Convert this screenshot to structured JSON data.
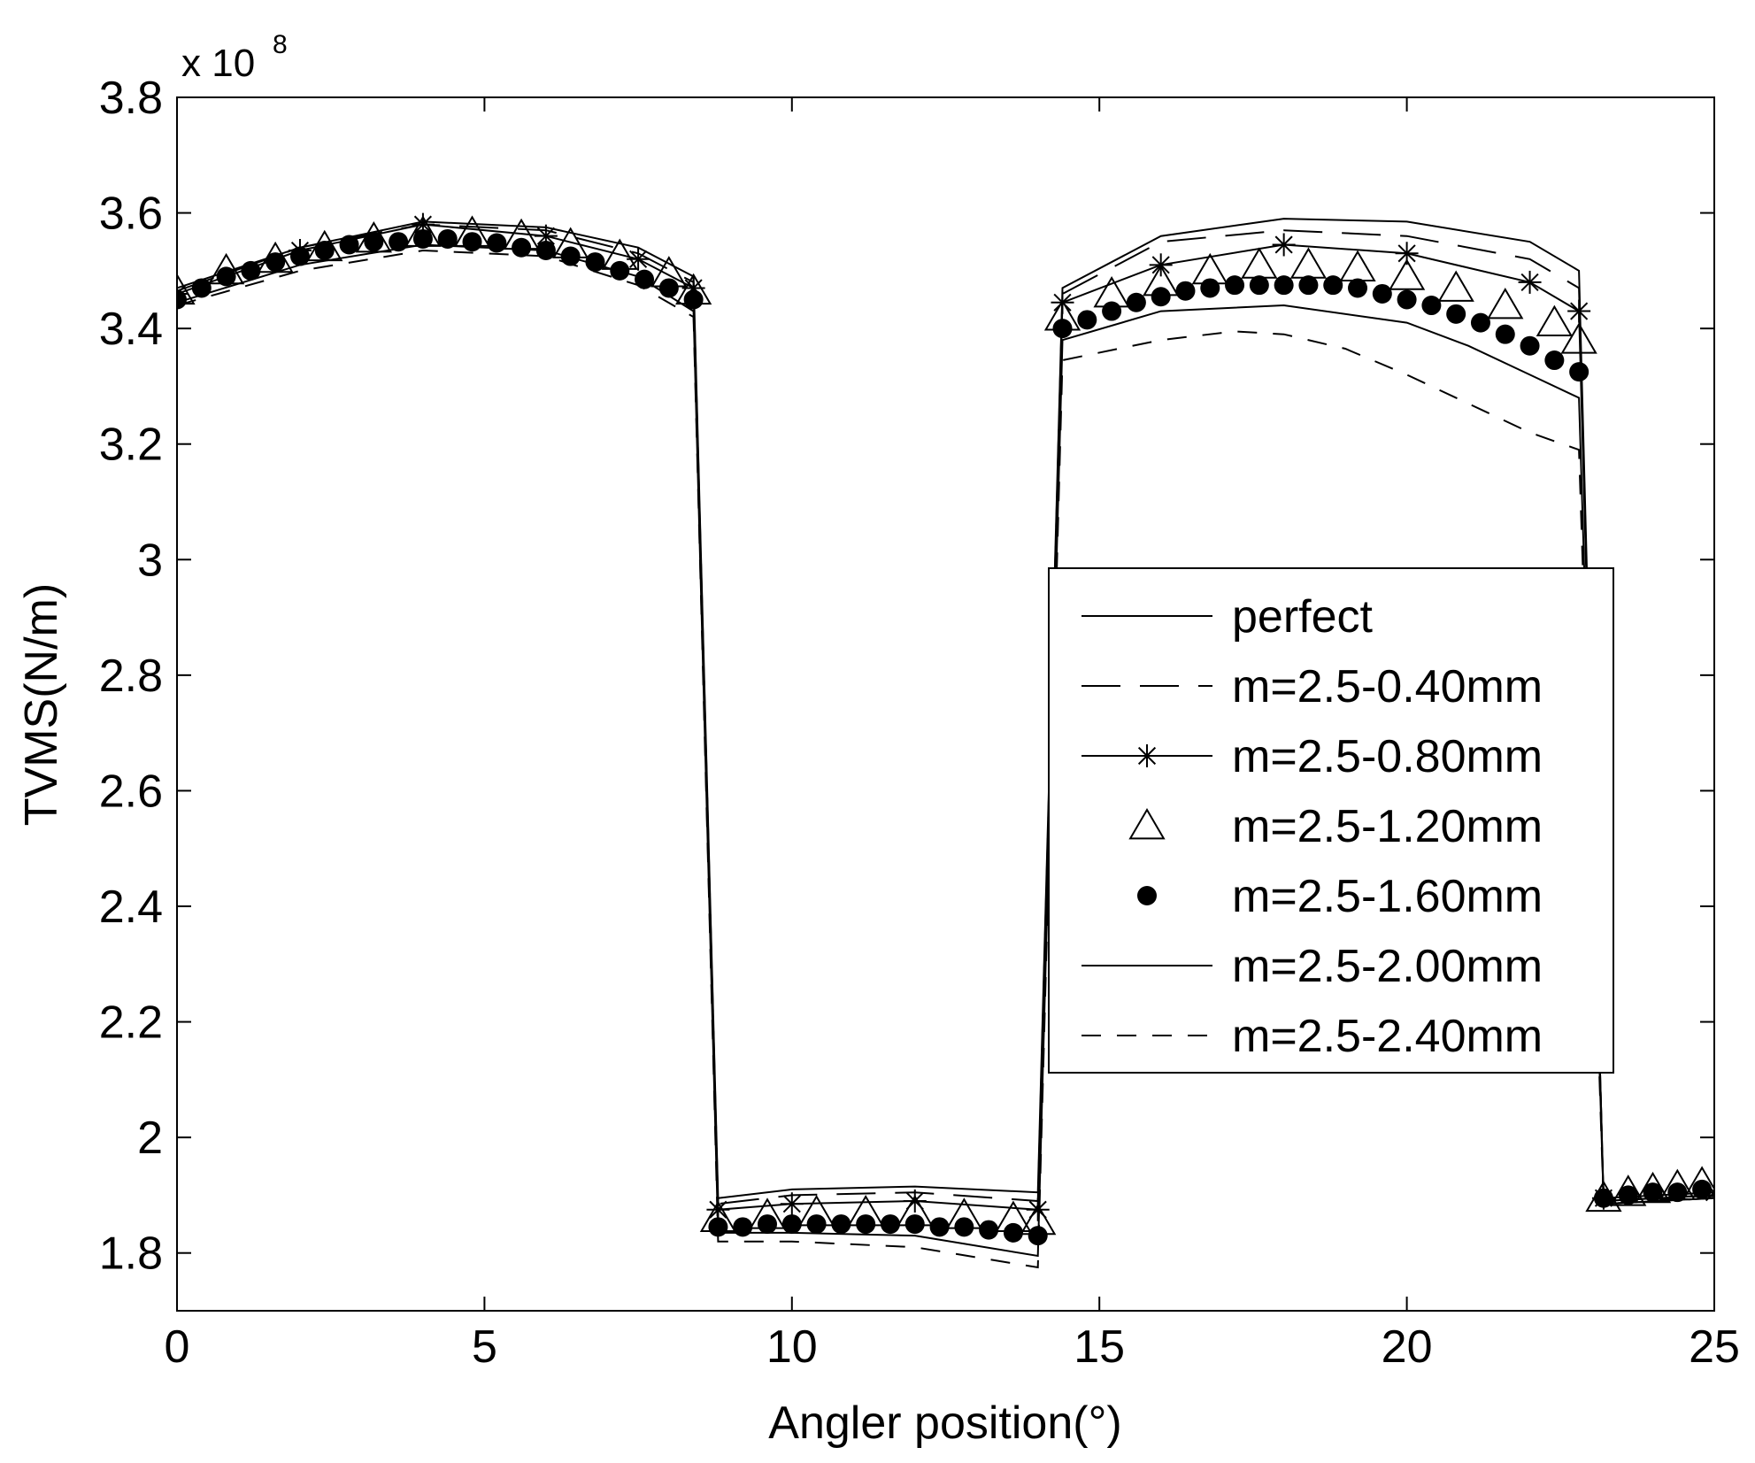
{
  "chart_data": {
    "type": "line",
    "xlabel": "Angler position(°)",
    "ylabel": "TVMS(N/m)",
    "y_multiplier": "x 10",
    "y_exponent": "8",
    "xlim": [
      0,
      25
    ],
    "ylim": [
      1.7,
      3.8
    ],
    "xticks": [
      0,
      5,
      10,
      15,
      20,
      25
    ],
    "xtick_labels": [
      "0",
      "5",
      "10",
      "15",
      "20",
      "25"
    ],
    "yticks": [
      1.8,
      2.0,
      2.2,
      2.4,
      2.6,
      2.8,
      3.0,
      3.2,
      3.4,
      3.6,
      3.8
    ],
    "ytick_labels": [
      "1.8",
      "2",
      "2.2",
      "2.4",
      "2.6",
      "2.8",
      "3",
      "3.2",
      "3.4",
      "3.6",
      "3.8"
    ],
    "grid": false,
    "legend_position": "center-right",
    "series": [
      {
        "name": "perfect",
        "style": "solid",
        "marker": "none",
        "points": [
          [
            0,
            3.47
          ],
          [
            2,
            3.54
          ],
          [
            4,
            3.585
          ],
          [
            6,
            3.575
          ],
          [
            7.5,
            3.54
          ],
          [
            8.4,
            3.49
          ],
          [
            8.8,
            1.895
          ],
          [
            10,
            1.91
          ],
          [
            12,
            1.915
          ],
          [
            14,
            1.905
          ],
          [
            14.4,
            3.47
          ],
          [
            16,
            3.56
          ],
          [
            18,
            3.59
          ],
          [
            20,
            3.585
          ],
          [
            22,
            3.55
          ],
          [
            22.8,
            3.5
          ],
          [
            23.2,
            1.885
          ],
          [
            25,
            1.895
          ]
        ]
      },
      {
        "name": "m=2.5-0.40mm",
        "style": "longdash",
        "marker": "none",
        "points": [
          [
            0,
            3.465
          ],
          [
            2,
            3.54
          ],
          [
            4,
            3.58
          ],
          [
            6,
            3.57
          ],
          [
            7.5,
            3.53
          ],
          [
            8.4,
            3.48
          ],
          [
            8.8,
            1.885
          ],
          [
            10,
            1.9
          ],
          [
            12,
            1.905
          ],
          [
            14,
            1.89
          ],
          [
            14.4,
            3.46
          ],
          [
            16,
            3.55
          ],
          [
            18,
            3.57
          ],
          [
            20,
            3.56
          ],
          [
            22,
            3.52
          ],
          [
            22.8,
            3.47
          ],
          [
            23.2,
            1.89
          ],
          [
            25,
            1.9
          ]
        ]
      },
      {
        "name": "m=2.5-0.80mm",
        "style": "solid",
        "marker": "star",
        "points": [
          [
            0,
            3.46
          ],
          [
            2,
            3.535
          ],
          [
            4,
            3.58
          ],
          [
            6,
            3.56
          ],
          [
            7.5,
            3.52
          ],
          [
            8.4,
            3.47
          ],
          [
            8.8,
            1.875
          ],
          [
            10,
            1.885
          ],
          [
            12,
            1.89
          ],
          [
            14,
            1.875
          ],
          [
            14.4,
            3.445
          ],
          [
            16,
            3.51
          ],
          [
            18,
            3.545
          ],
          [
            20,
            3.53
          ],
          [
            22,
            3.48
          ],
          [
            22.8,
            3.43
          ],
          [
            23.2,
            1.895
          ],
          [
            25,
            1.905
          ]
        ]
      },
      {
        "name": "m=2.5-1.20mm",
        "style": "none",
        "marker": "triangle",
        "points": [
          [
            0,
            3.465
          ],
          [
            0.8,
            3.5
          ],
          [
            1.6,
            3.52
          ],
          [
            2.4,
            3.54
          ],
          [
            3.2,
            3.555
          ],
          [
            4,
            3.565
          ],
          [
            4.8,
            3.565
          ],
          [
            5.6,
            3.56
          ],
          [
            6.4,
            3.545
          ],
          [
            7.2,
            3.525
          ],
          [
            8,
            3.495
          ],
          [
            8.4,
            3.465
          ],
          [
            8.8,
            1.86
          ],
          [
            9.6,
            1.865
          ],
          [
            10.4,
            1.87
          ],
          [
            11.2,
            1.87
          ],
          [
            12,
            1.87
          ],
          [
            12.8,
            1.865
          ],
          [
            13.6,
            1.86
          ],
          [
            14,
            1.855
          ],
          [
            14.4,
            3.42
          ],
          [
            15.2,
            3.46
          ],
          [
            16,
            3.48
          ],
          [
            16.8,
            3.5
          ],
          [
            17.6,
            3.51
          ],
          [
            18.4,
            3.51
          ],
          [
            19.2,
            3.505
          ],
          [
            20,
            3.49
          ],
          [
            20.8,
            3.47
          ],
          [
            21.6,
            3.44
          ],
          [
            22.4,
            3.41
          ],
          [
            22.8,
            3.38
          ],
          [
            23.2,
            1.895
          ],
          [
            23.6,
            1.905
          ],
          [
            24,
            1.91
          ],
          [
            24.4,
            1.915
          ],
          [
            24.8,
            1.92
          ]
        ]
      },
      {
        "name": "m=2.5-1.60mm",
        "style": "none",
        "marker": "dot",
        "points": [
          [
            0,
            3.45
          ],
          [
            0.4,
            3.47
          ],
          [
            0.8,
            3.49
          ],
          [
            1.2,
            3.5
          ],
          [
            1.6,
            3.515
          ],
          [
            2,
            3.525
          ],
          [
            2.4,
            3.535
          ],
          [
            2.8,
            3.545
          ],
          [
            3.2,
            3.55
          ],
          [
            3.6,
            3.55
          ],
          [
            4,
            3.555
          ],
          [
            4.4,
            3.555
          ],
          [
            4.8,
            3.55
          ],
          [
            5.2,
            3.548
          ],
          [
            5.6,
            3.54
          ],
          [
            6,
            3.535
          ],
          [
            6.4,
            3.525
          ],
          [
            6.8,
            3.515
          ],
          [
            7.2,
            3.5
          ],
          [
            7.6,
            3.485
          ],
          [
            8,
            3.47
          ],
          [
            8.4,
            3.45
          ],
          [
            8.8,
            1.845
          ],
          [
            9.2,
            1.845
          ],
          [
            9.6,
            1.85
          ],
          [
            10,
            1.85
          ],
          [
            10.4,
            1.85
          ],
          [
            10.8,
            1.85
          ],
          [
            11.2,
            1.85
          ],
          [
            11.6,
            1.85
          ],
          [
            12,
            1.85
          ],
          [
            12.4,
            1.845
          ],
          [
            12.8,
            1.845
          ],
          [
            13.2,
            1.84
          ],
          [
            13.6,
            1.835
          ],
          [
            14,
            1.83
          ],
          [
            14.4,
            3.4
          ],
          [
            14.8,
            3.415
          ],
          [
            15.2,
            3.43
          ],
          [
            15.6,
            3.445
          ],
          [
            16,
            3.455
          ],
          [
            16.4,
            3.465
          ],
          [
            16.8,
            3.47
          ],
          [
            17.2,
            3.475
          ],
          [
            17.6,
            3.475
          ],
          [
            18,
            3.475
          ],
          [
            18.4,
            3.475
          ],
          [
            18.8,
            3.475
          ],
          [
            19.2,
            3.47
          ],
          [
            19.6,
            3.46
          ],
          [
            20,
            3.45
          ],
          [
            20.4,
            3.44
          ],
          [
            20.8,
            3.425
          ],
          [
            21.2,
            3.41
          ],
          [
            21.6,
            3.39
          ],
          [
            22,
            3.37
          ],
          [
            22.4,
            3.345
          ],
          [
            22.8,
            3.325
          ],
          [
            23.2,
            1.895
          ],
          [
            23.6,
            1.9
          ],
          [
            24,
            1.905
          ],
          [
            24.4,
            1.905
          ],
          [
            24.8,
            1.91
          ]
        ]
      },
      {
        "name": "m=2.5-2.00mm",
        "style": "solid",
        "marker": "none",
        "points": [
          [
            0,
            3.445
          ],
          [
            2,
            3.51
          ],
          [
            4,
            3.545
          ],
          [
            6,
            3.535
          ],
          [
            7.5,
            3.49
          ],
          [
            8.4,
            3.43
          ],
          [
            8.8,
            1.835
          ],
          [
            10,
            1.835
          ],
          [
            12,
            1.83
          ],
          [
            14,
            1.795
          ],
          [
            14.4,
            3.38
          ],
          [
            16,
            3.43
          ],
          [
            18,
            3.44
          ],
          [
            20,
            3.41
          ],
          [
            21,
            3.37
          ],
          [
            22,
            3.32
          ],
          [
            22.8,
            3.28
          ],
          [
            23.2,
            1.89
          ],
          [
            25,
            1.9
          ]
        ]
      },
      {
        "name": "m=2.5-2.40mm",
        "style": "dashed",
        "marker": "none",
        "points": [
          [
            0,
            3.44
          ],
          [
            2,
            3.5
          ],
          [
            4,
            3.535
          ],
          [
            6,
            3.525
          ],
          [
            7.5,
            3.475
          ],
          [
            8.4,
            3.42
          ],
          [
            8.8,
            1.82
          ],
          [
            10,
            1.82
          ],
          [
            12,
            1.81
          ],
          [
            14,
            1.775
          ],
          [
            14.4,
            3.345
          ],
          [
            16,
            3.38
          ],
          [
            17.2,
            3.395
          ],
          [
            18,
            3.39
          ],
          [
            19,
            3.365
          ],
          [
            20,
            3.32
          ],
          [
            21,
            3.27
          ],
          [
            22,
            3.22
          ],
          [
            22.8,
            3.19
          ],
          [
            23.2,
            1.885
          ],
          [
            25,
            1.895
          ]
        ]
      }
    ]
  }
}
